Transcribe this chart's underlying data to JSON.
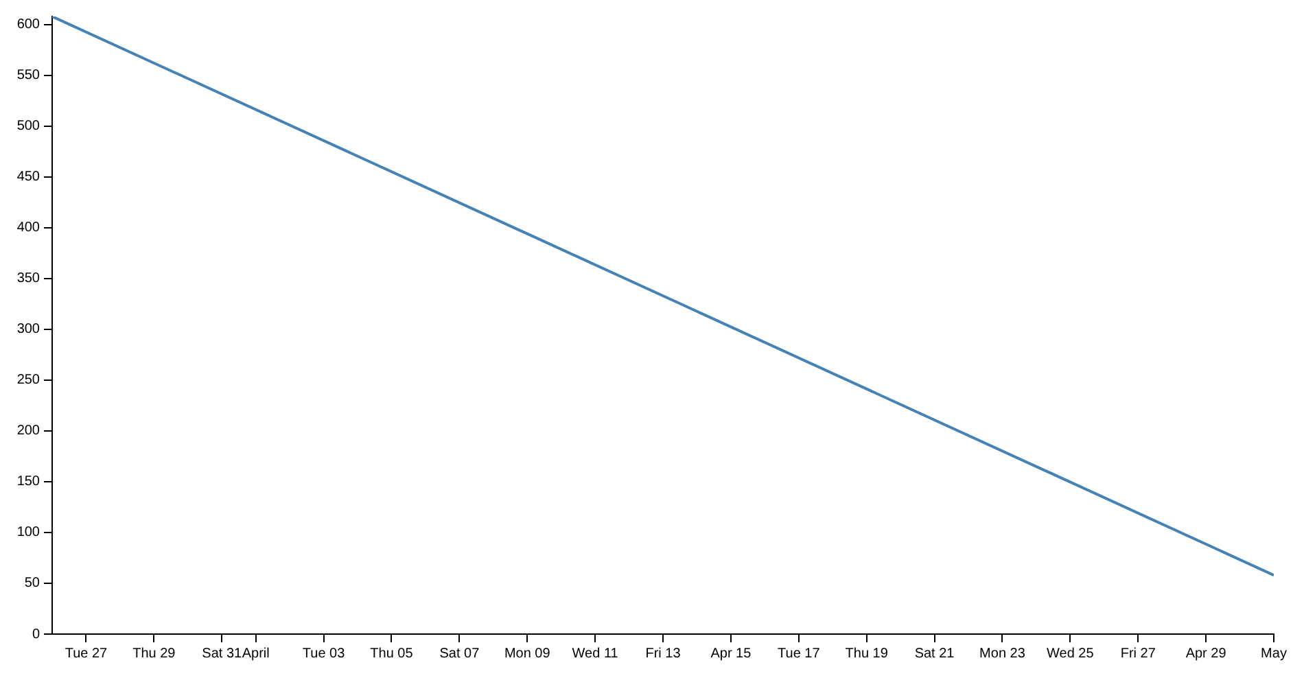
{
  "chart_data": {
    "type": "line",
    "x": [
      "--03-26",
      "--05-01"
    ],
    "values": [
      608,
      58
    ],
    "color": "#4682b4",
    "xlim": [
      "--03-26",
      "--05-01"
    ],
    "ylim": [
      0,
      608
    ],
    "yticks": [
      0,
      50,
      100,
      150,
      200,
      250,
      300,
      350,
      400,
      450,
      500,
      550,
      600
    ],
    "xticks": [
      {
        "value": "--03-27",
        "label": "Tue 27"
      },
      {
        "value": "--03-29",
        "label": "Thu 29"
      },
      {
        "value": "--03-31",
        "label": "Sat 31"
      },
      {
        "value": "--04-01",
        "label": "April"
      },
      {
        "value": "--04-03",
        "label": "Tue 03"
      },
      {
        "value": "--04-05",
        "label": "Thu 05"
      },
      {
        "value": "--04-07",
        "label": "Sat 07"
      },
      {
        "value": "--04-09",
        "label": "Mon 09"
      },
      {
        "value": "--04-11",
        "label": "Wed 11"
      },
      {
        "value": "--04-13",
        "label": "Fri 13"
      },
      {
        "value": "--04-15",
        "label": "Apr 15"
      },
      {
        "value": "--04-17",
        "label": "Tue 17"
      },
      {
        "value": "--04-19",
        "label": "Thu 19"
      },
      {
        "value": "--04-21",
        "label": "Sat 21"
      },
      {
        "value": "--04-23",
        "label": "Mon 23"
      },
      {
        "value": "--04-25",
        "label": "Wed 25"
      },
      {
        "value": "--04-27",
        "label": "Fri 27"
      },
      {
        "value": "--04-29",
        "label": "Apr 29"
      },
      {
        "value": "--05-01",
        "label": "May"
      }
    ],
    "grid": false,
    "marker": "none"
  }
}
